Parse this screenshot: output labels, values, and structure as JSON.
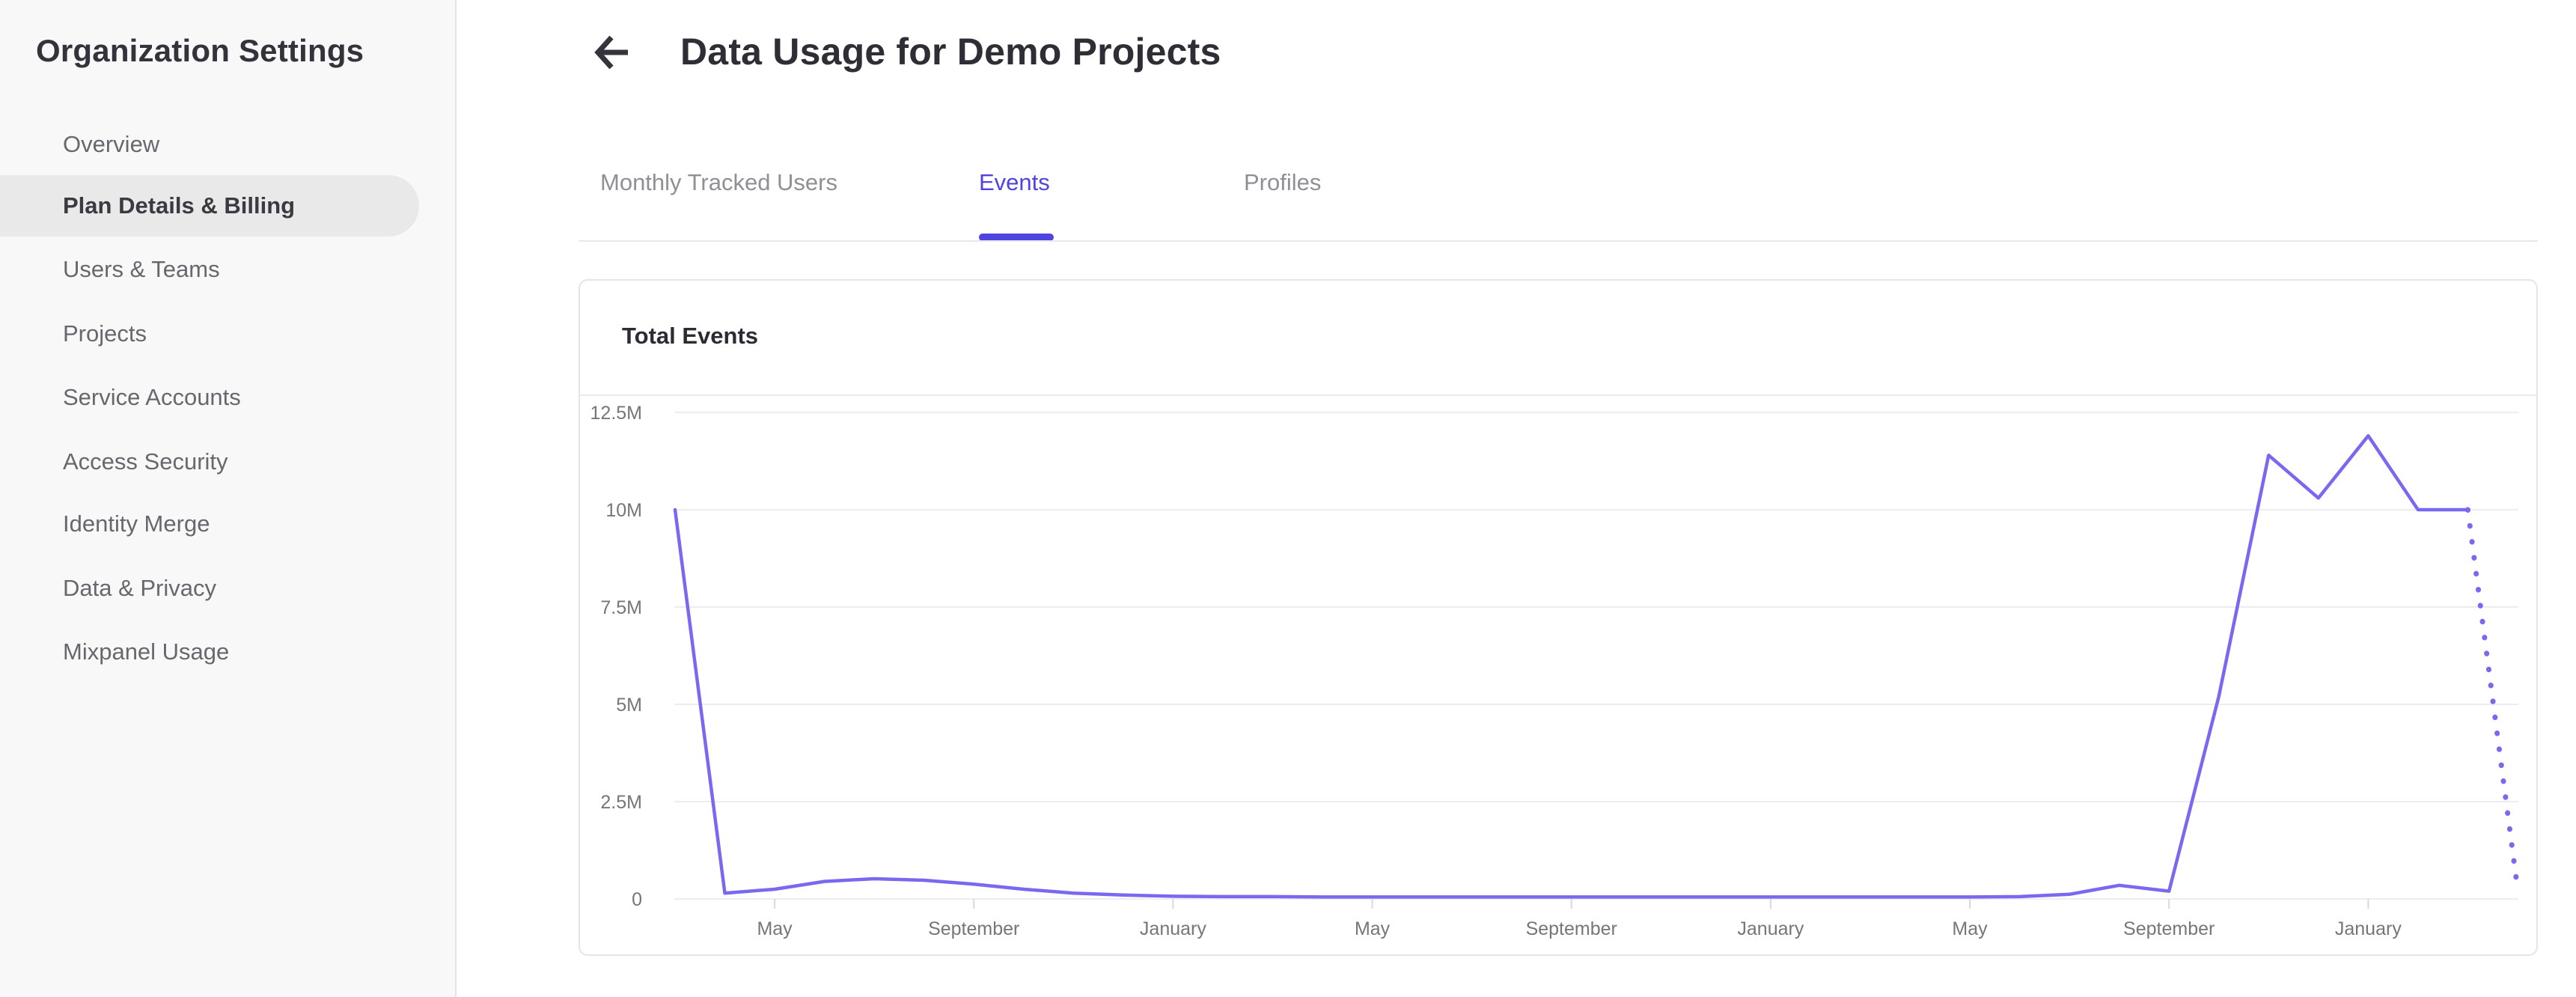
{
  "sidebar": {
    "title": "Organization Settings",
    "items": [
      {
        "label": "Overview",
        "selected": false
      },
      {
        "label": "Plan Details & Billing",
        "selected": true
      },
      {
        "label": "Users & Teams",
        "selected": false
      },
      {
        "label": "Projects",
        "selected": false
      },
      {
        "label": "Service Accounts",
        "selected": false
      },
      {
        "label": "Access Security",
        "selected": false
      },
      {
        "label": "Identity Merge",
        "selected": false
      },
      {
        "label": "Data & Privacy",
        "selected": false
      },
      {
        "label": "Mixpanel Usage",
        "selected": false
      }
    ]
  },
  "header": {
    "title": "Data Usage for Demo Projects",
    "back_icon": "arrow-left-icon"
  },
  "tabs": [
    {
      "label": "Monthly Tracked Users",
      "active": false
    },
    {
      "label": "Events",
      "active": true
    },
    {
      "label": "Profiles",
      "active": false
    }
  ],
  "card": {
    "title": "Total Events"
  },
  "colors": {
    "accent_purple": "#4f44e0",
    "line_purple": "#7968f0",
    "sidebar_bg": "#f8f8f8",
    "selected_pill": "#e9e9e9",
    "gridline": "#ededef",
    "axis_text": "#75757c"
  },
  "chart_data": {
    "type": "line",
    "title": "Total Events",
    "legend": "none",
    "grid": "horizontal",
    "y_axis": {
      "min_millions": 0,
      "max_millions": 12.5,
      "ticks": [
        {
          "label": "12.5M",
          "value": 12.5
        },
        {
          "label": "10M",
          "value": 10
        },
        {
          "label": "7.5M",
          "value": 7.5
        },
        {
          "label": "5M",
          "value": 5
        },
        {
          "label": "2.5M",
          "value": 2.5
        },
        {
          "label": "0",
          "value": 0
        }
      ]
    },
    "x_axis": {
      "start_month": "March (year 1)",
      "months_span": 38,
      "ticks": [
        {
          "label": "May",
          "index": 2
        },
        {
          "label": "September",
          "index": 6
        },
        {
          "label": "January",
          "index": 10
        },
        {
          "label": "May",
          "index": 14
        },
        {
          "label": "September",
          "index": 18
        },
        {
          "label": "January",
          "index": 22
        },
        {
          "label": "May",
          "index": 26
        },
        {
          "label": "September",
          "index": 30
        },
        {
          "label": "January",
          "index": 34
        }
      ]
    },
    "series": [
      {
        "name": "Total Events",
        "unit": "millions of events",
        "values_millions": [
          10,
          0.15,
          0.25,
          0.45,
          0.52,
          0.48,
          0.38,
          0.25,
          0.15,
          0.1,
          0.07,
          0.06,
          0.06,
          0.05,
          0.05,
          0.05,
          0.05,
          0.05,
          0.05,
          0.05,
          0.05,
          0.05,
          0.05,
          0.05,
          0.05,
          0.05,
          0.05,
          0.06,
          0.12,
          0.35,
          0.2,
          5.2,
          11.4,
          10.3,
          11.9,
          10.0,
          10.0
        ]
      }
    ],
    "projected_point": {
      "index": 37,
      "value_millions": 0.25,
      "style": "dotted"
    }
  }
}
